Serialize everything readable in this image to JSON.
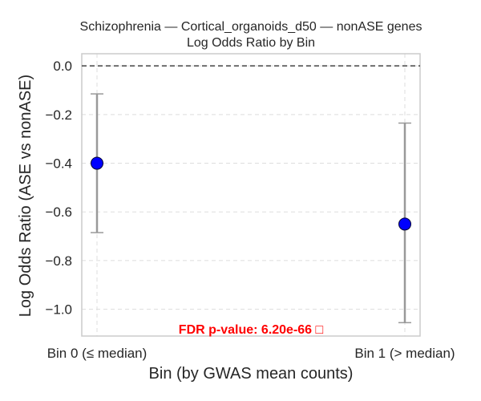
{
  "chart_data": {
    "type": "scatter",
    "title_lines": [
      "Schizophrenia — Cortical_organoids_d50 — nonASE genes",
      "Log Odds Ratio by Bin"
    ],
    "xlabel": "Bin (by GWAS mean counts)",
    "ylabel": "Log Odds Ratio (ASE vs nonASE)",
    "categories": [
      "Bin 0 (≤ median)",
      "Bin 1 (> median)"
    ],
    "values": [
      -0.4,
      -0.65
    ],
    "error_low": [
      -0.685,
      -1.055
    ],
    "error_high": [
      -0.115,
      -0.235
    ],
    "ylim": [
      -1.11,
      0.05
    ],
    "yticks": [
      0.0,
      -0.2,
      -0.4,
      -0.6,
      -0.8,
      -1.0
    ],
    "ytick_labels": [
      "0.0",
      "−0.2",
      "−0.4",
      "−0.6",
      "−0.8",
      "−1.0"
    ],
    "reference_line": 0.0,
    "grid": true,
    "annotation": "FDR p-value: 6.20e-66 □",
    "colors": {
      "marker": "#0000ff",
      "marker_edge": "#000033",
      "errorbar": "#999999",
      "reference": "#444444",
      "annotation": "#ff0000",
      "grid": "#dddddd",
      "frame": "#cccccc"
    }
  }
}
